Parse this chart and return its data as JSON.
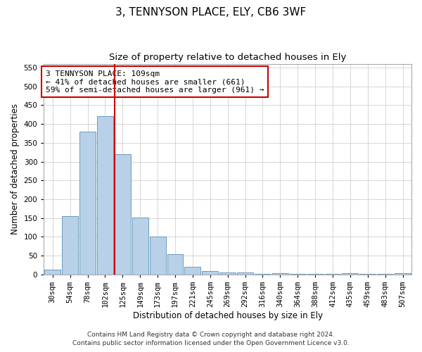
{
  "title": "3, TENNYSON PLACE, ELY, CB6 3WF",
  "subtitle": "Size of property relative to detached houses in Ely",
  "xlabel": "Distribution of detached houses by size in Ely",
  "ylabel": "Number of detached properties",
  "bin_labels": [
    "30sqm",
    "54sqm",
    "78sqm",
    "102sqm",
    "125sqm",
    "149sqm",
    "173sqm",
    "197sqm",
    "221sqm",
    "245sqm",
    "269sqm",
    "292sqm",
    "316sqm",
    "340sqm",
    "364sqm",
    "388sqm",
    "412sqm",
    "435sqm",
    "459sqm",
    "483sqm",
    "507sqm"
  ],
  "bar_values": [
    13,
    155,
    380,
    420,
    320,
    152,
    100,
    55,
    20,
    10,
    5,
    5,
    2,
    3,
    2,
    2,
    2,
    3,
    2,
    2,
    3
  ],
  "bar_color": "#b8d0e8",
  "bar_edge_color": "#6a9cc0",
  "vline_color": "#cc0000",
  "vline_x": 3.55,
  "annotation_text": "3 TENNYSON PLACE: 109sqm\n← 41% of detached houses are smaller (661)\n59% of semi-detached houses are larger (961) →",
  "annotation_box_color": "#ffffff",
  "annotation_box_edge": "#cc0000",
  "footnote1": "Contains HM Land Registry data © Crown copyright and database right 2024.",
  "footnote2": "Contains public sector information licensed under the Open Government Licence v3.0.",
  "ylim": [
    0,
    560
  ],
  "yticks": [
    0,
    50,
    100,
    150,
    200,
    250,
    300,
    350,
    400,
    450,
    500,
    550
  ],
  "bg_color": "#ffffff",
  "grid_color": "#d0d0d0",
  "title_fontsize": 11,
  "subtitle_fontsize": 9.5,
  "ylabel_fontsize": 8.5,
  "xlabel_fontsize": 8.5,
  "tick_fontsize": 7.5,
  "annotation_fontsize": 8,
  "footnote_fontsize": 6.5
}
